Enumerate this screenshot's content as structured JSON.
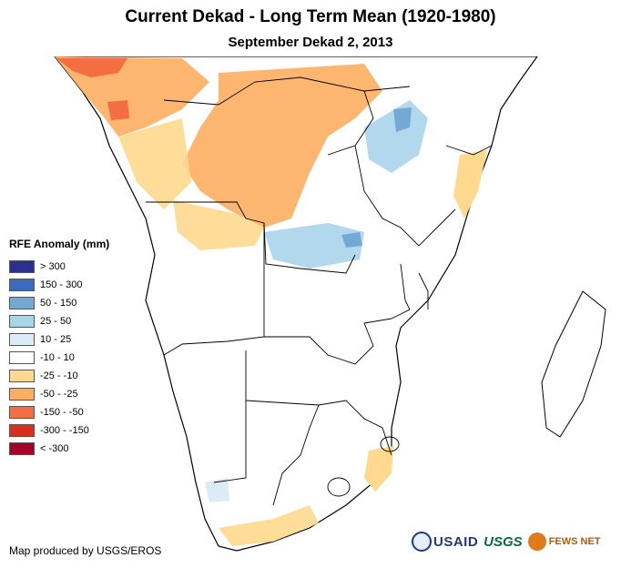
{
  "title": "Current Dekad - Long Term Mean (1920-1980)",
  "subtitle": "September Dekad 2, 2013",
  "legend": {
    "title": "RFE Anomaly (mm)",
    "items": [
      {
        "label": "> 300",
        "color": "#2b2f8f"
      },
      {
        "label": "150 - 300",
        "color": "#3b6bbf"
      },
      {
        "label": "50 - 150",
        "color": "#74a9d4"
      },
      {
        "label": "25 - 50",
        "color": "#a9d4ea"
      },
      {
        "label": "10 - 25",
        "color": "#dcecf6"
      },
      {
        "label": "-10 - 10",
        "color": "#ffffff"
      },
      {
        "label": "-25 - -10",
        "color": "#fed98e"
      },
      {
        "label": "-50 - -25",
        "color": "#fdae61"
      },
      {
        "label": "-150 - -50",
        "color": "#f46d43"
      },
      {
        "label": "-300 - -150",
        "color": "#d7301f"
      },
      {
        "label": "< -300",
        "color": "#a50026"
      }
    ]
  },
  "credit": "Map produced by USGS/EROS",
  "logos": {
    "usaid": "USAID",
    "usgs": "USGS",
    "fews": "FEWS NET"
  },
  "map_icons": {
    "border": "country-borders",
    "ocean": "ocean-background"
  }
}
